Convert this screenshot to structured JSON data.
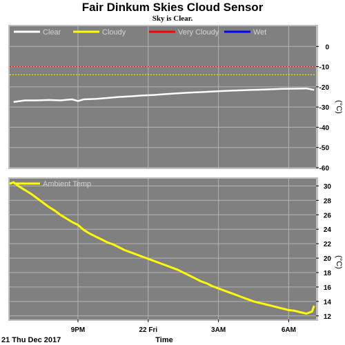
{
  "title": "Fair Dinkum Skies Cloud Sensor",
  "subtitle": "Sky is Clear.",
  "footer": {
    "date_label": "21 Thu Dec 2017",
    "xlabel": "Time"
  },
  "colors": {
    "plot_bg": "#808080",
    "frame_bg": "#c0c0c0",
    "grid": "#b4b4b4",
    "clear": "#ffffff",
    "cloudy": "#ffff00",
    "very_cloudy": "#ff0000",
    "wet": "#0000ff",
    "ambient": "#ffff00",
    "legend_text": "#d4d4d4"
  },
  "chart_data": [
    {
      "type": "line",
      "name": "cloud-sensor",
      "legend": [
        {
          "label": "Clear",
          "color": "#ffffff"
        },
        {
          "label": "Cloudy",
          "color": "#ffff00"
        },
        {
          "label": "Very Cloudy",
          "color": "#ff0000"
        },
        {
          "label": "Wet",
          "color": "#0000ff"
        }
      ],
      "ylabel": "(°C)",
      "ylim": [
        -60,
        10
      ],
      "yticks": [
        0,
        -10,
        -20,
        -30,
        -40,
        -50,
        -60
      ],
      "thresholds": [
        {
          "series": "Very Cloudy",
          "value": -10,
          "color": "#ff0000"
        },
        {
          "series": "Cloudy",
          "value": -14,
          "color": "#ffff00"
        }
      ],
      "series": [
        {
          "name": "Clear",
          "color": "#ffffff",
          "x": [
            "18:15",
            "18:45",
            "19:15",
            "19:45",
            "20:15",
            "20:45",
            "21:00",
            "21:15",
            "21:45",
            "22:15",
            "22:45",
            "23:15",
            "23:45",
            "00:15",
            "00:45",
            "01:15",
            "01:45",
            "02:15",
            "02:45",
            "03:15",
            "03:45",
            "04:15",
            "04:45",
            "05:15",
            "05:45",
            "06:15",
            "06:45",
            "07:05"
          ],
          "y": [
            -27.5,
            -26.7,
            -26.7,
            -26.5,
            -26.7,
            -26.2,
            -27.0,
            -26.2,
            -26.0,
            -25.5,
            -25.0,
            -24.7,
            -24.3,
            -24.0,
            -23.6,
            -23.2,
            -22.9,
            -22.6,
            -22.3,
            -22.0,
            -21.8,
            -21.6,
            -21.4,
            -21.2,
            -21.0,
            -20.9,
            -20.8,
            -21.5
          ]
        }
      ]
    },
    {
      "type": "line",
      "legend": [
        {
          "label": "Ambient Temp",
          "color": "#ffff00"
        }
      ],
      "ylabel": "(°C)",
      "ylim": [
        11.5,
        31
      ],
      "yticks": [
        30,
        28,
        26,
        24,
        22,
        20,
        18,
        16,
        14,
        12
      ],
      "xlim": [
        "18:05",
        "07:10"
      ],
      "xticks": [
        {
          "time": "21:00",
          "label": "9PM"
        },
        {
          "time": "00:00",
          "label": "22 Fri"
        },
        {
          "time": "03:00",
          "label": "3AM"
        },
        {
          "time": "06:00",
          "label": "6AM"
        }
      ],
      "series": [
        {
          "name": "Ambient Temp",
          "color": "#ffff00",
          "x": [
            "18:05",
            "18:15",
            "18:30",
            "18:45",
            "19:00",
            "19:15",
            "19:30",
            "19:45",
            "20:00",
            "20:15",
            "20:30",
            "20:45",
            "21:00",
            "21:15",
            "21:30",
            "21:45",
            "22:00",
            "22:15",
            "22:30",
            "22:45",
            "23:00",
            "23:15",
            "23:30",
            "23:45",
            "00:00",
            "00:15",
            "00:30",
            "00:45",
            "01:00",
            "01:15",
            "01:30",
            "01:45",
            "02:00",
            "02:15",
            "02:30",
            "02:45",
            "03:00",
            "03:15",
            "03:30",
            "03:45",
            "04:00",
            "04:15",
            "04:30",
            "04:45",
            "05:00",
            "05:15",
            "05:30",
            "05:45",
            "06:00",
            "06:15",
            "06:30",
            "06:45",
            "07:00",
            "07:05"
          ],
          "y": [
            30.3,
            30.5,
            29.9,
            29.4,
            28.9,
            28.3,
            27.7,
            27.1,
            26.6,
            26.0,
            25.5,
            25.0,
            24.6,
            23.9,
            23.4,
            23.0,
            22.6,
            22.2,
            21.9,
            21.5,
            21.1,
            20.8,
            20.5,
            20.2,
            19.9,
            19.6,
            19.3,
            19.0,
            18.7,
            18.4,
            18.0,
            17.6,
            17.2,
            16.8,
            16.5,
            16.1,
            15.8,
            15.5,
            15.2,
            14.9,
            14.6,
            14.3,
            14.0,
            13.8,
            13.6,
            13.4,
            13.2,
            13.0,
            12.8,
            12.7,
            12.5,
            12.3,
            12.6,
            13.4
          ]
        }
      ]
    }
  ]
}
